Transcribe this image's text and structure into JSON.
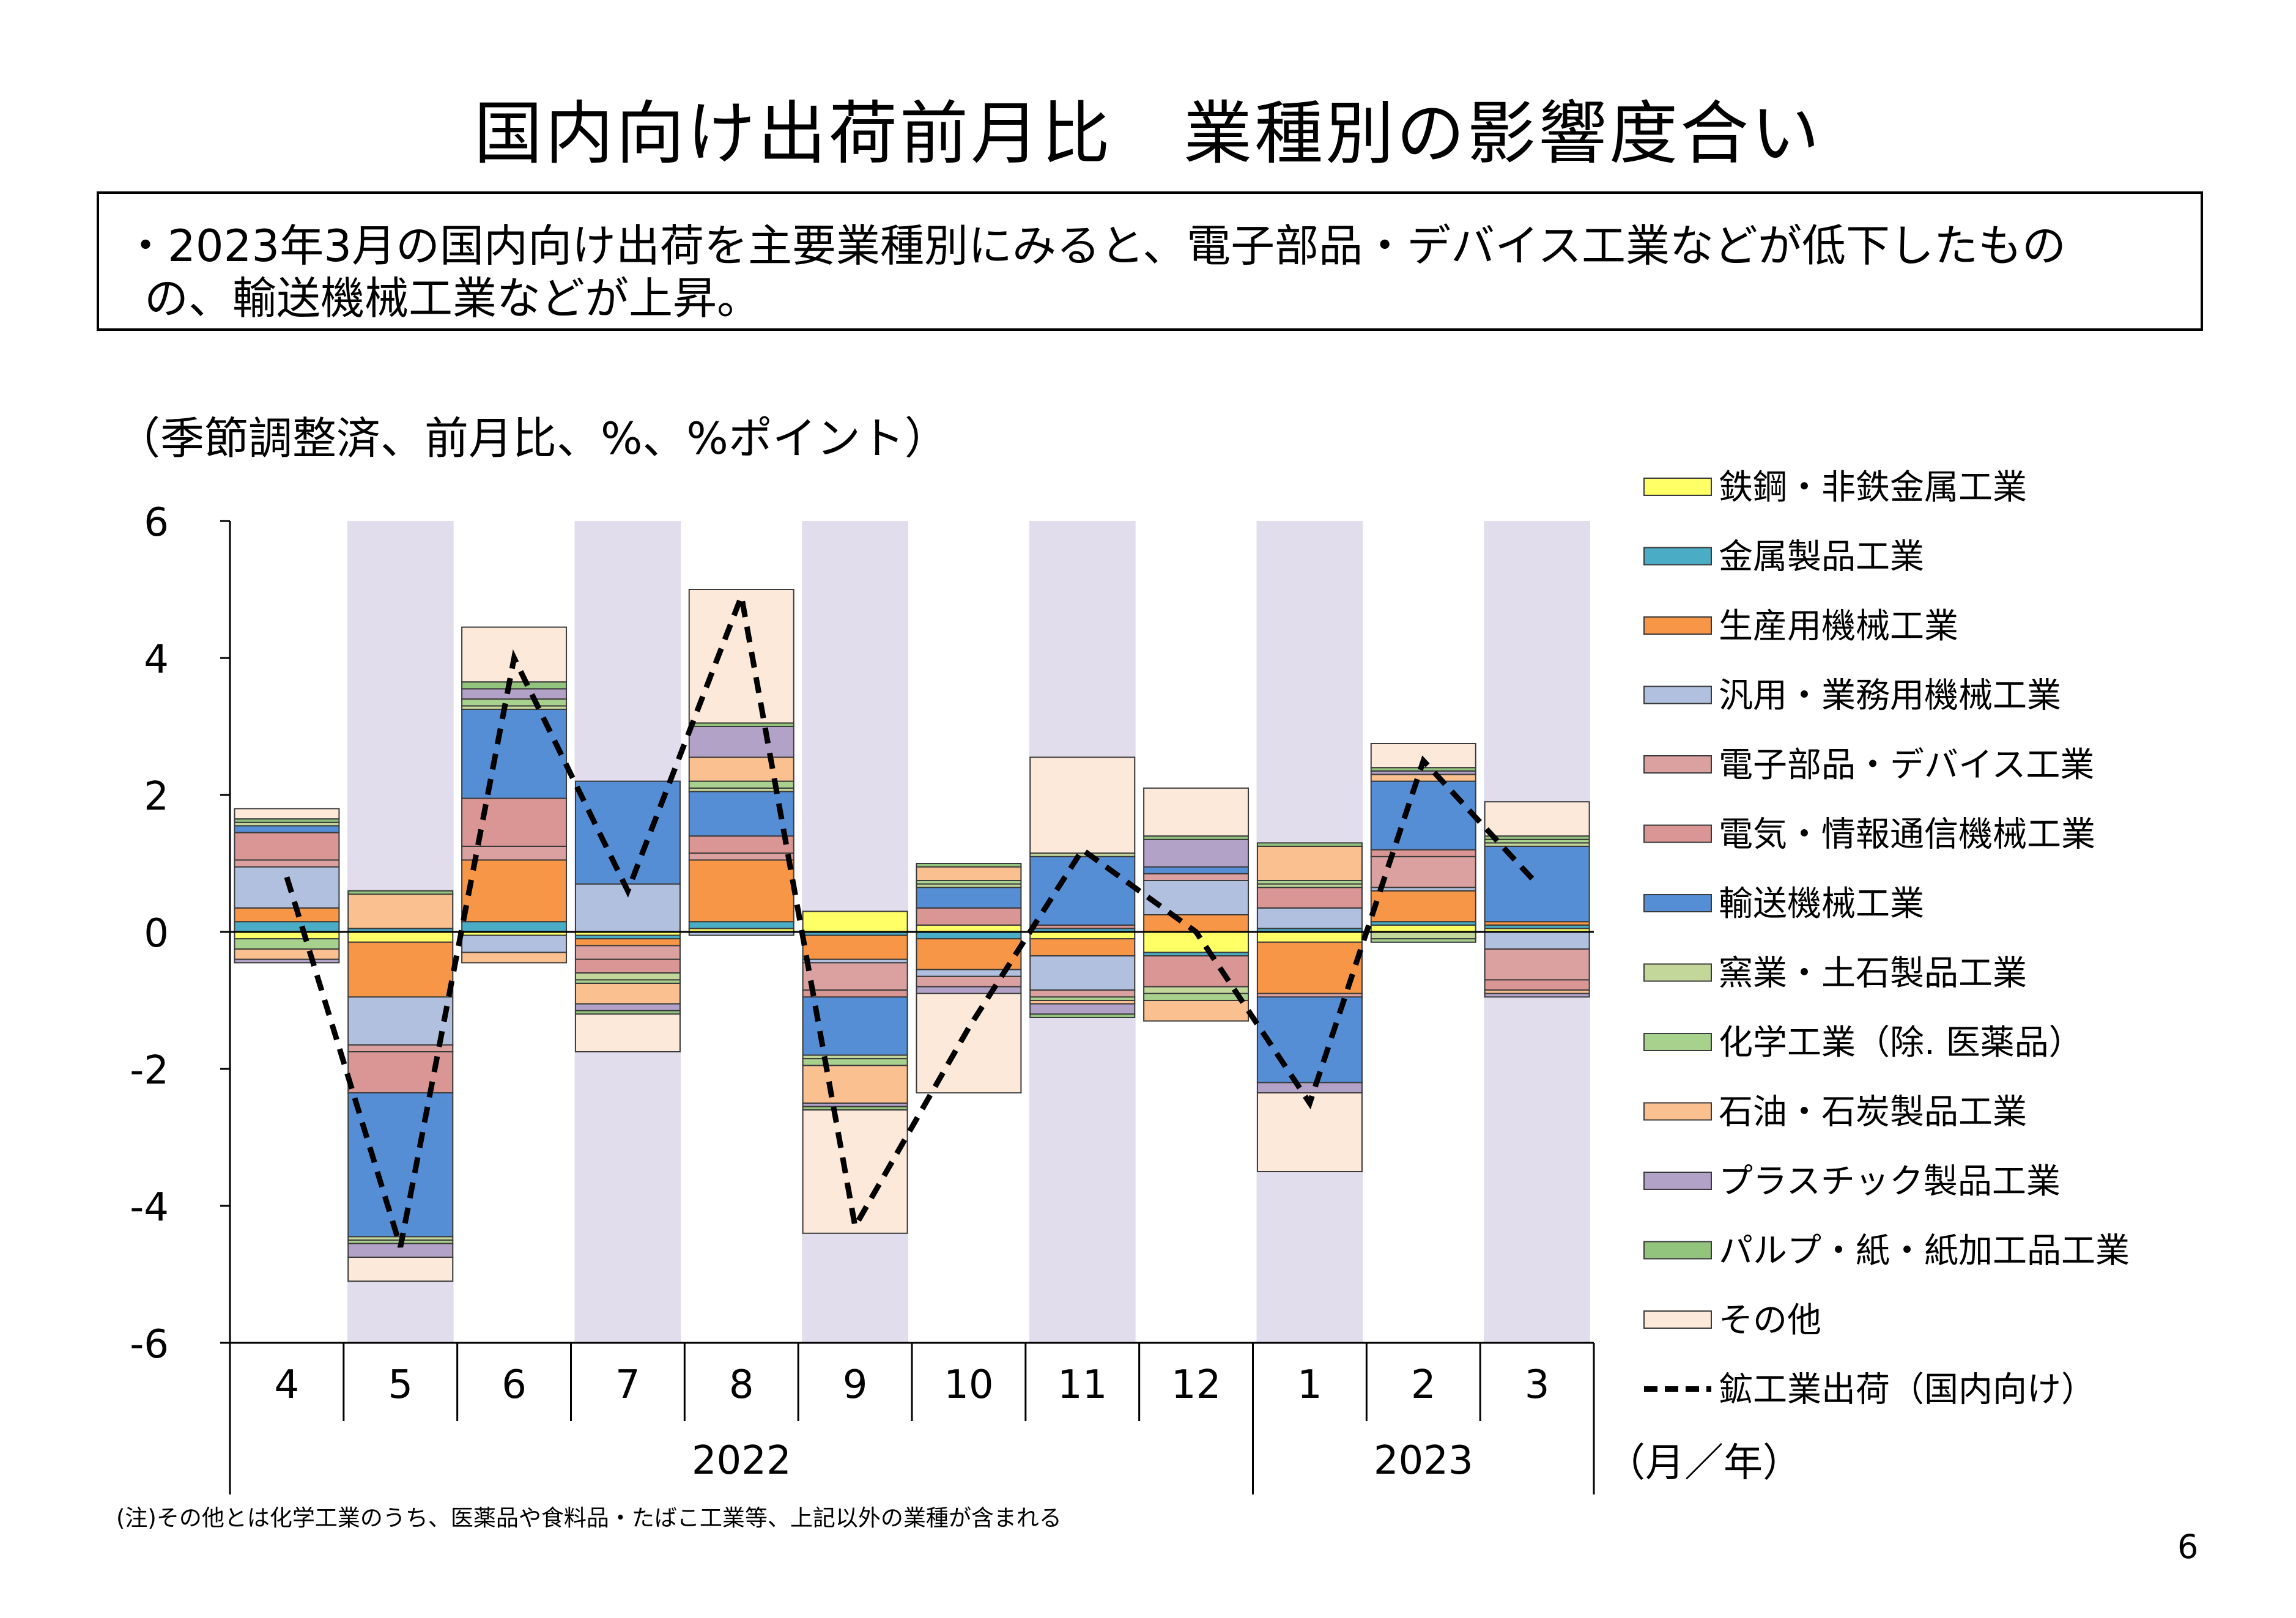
{
  "page": {
    "title": "国内向け出荷前月比　業種別の影響度合い",
    "summary_line1": "・2023年3月の国内向け出荷を主要業種別にみると、電子部品・デバイス工業などが低下したもの",
    "summary_line2": "の、輸送機械工業などが上昇。",
    "unit_label": "（季節調整済、前月比、%、%ポイント）",
    "footnote": "(注)その他とは化学工業のうち、医薬品や食料品・たばこ工業等、上記以外の業種が含まれる",
    "page_number": "6"
  },
  "chart_data": {
    "type": "bar",
    "stacked": true,
    "title": "",
    "xlabel": "（月／年）",
    "ylabel": "",
    "ylim": [
      -6,
      6
    ],
    "yticks": [
      6,
      4,
      2,
      0,
      -2,
      -4,
      -6
    ],
    "yticks_labels": [
      "6",
      "4",
      "2",
      "0",
      "-2",
      "-4",
      "-6"
    ],
    "categories": [
      "4",
      "5",
      "6",
      "7",
      "8",
      "9",
      "10",
      "11",
      "12",
      "1",
      "2",
      "3"
    ],
    "year_groups": [
      {
        "label": "2022",
        "start": 0,
        "end": 8
      },
      {
        "label": "2023",
        "start": 9,
        "end": 11
      }
    ],
    "shaded_categories": [
      1,
      3,
      5,
      7,
      9,
      11
    ],
    "shade_color": "#e2dded",
    "legend_position": "right",
    "series": [
      {
        "name": "鉄鋼・非鉄金属工業",
        "color": "#ffff66",
        "values": [
          -0.1,
          -0.15,
          -0.05,
          -0.05,
          0.05,
          0.3,
          0.1,
          -0.1,
          -0.3,
          -0.15,
          0.1,
          0.05
        ]
      },
      {
        "name": "金属製品工業",
        "color": "#4bacc6",
        "values": [
          0.15,
          0.05,
          0.15,
          -0.05,
          0.1,
          -0.05,
          -0.1,
          0.05,
          -0.05,
          0.05,
          0.05,
          0.05
        ]
      },
      {
        "name": "生産用機械工業",
        "color": "#f79646",
        "values": [
          0.2,
          -0.8,
          0.9,
          -0.1,
          0.9,
          -0.35,
          -0.45,
          -0.25,
          0.25,
          -0.75,
          0.45,
          0.05
        ]
      },
      {
        "name": "汎用・業務用機械工業",
        "color": "#b0c0de",
        "values": [
          0.6,
          -0.7,
          -0.25,
          0.7,
          -0.05,
          -0.05,
          -0.1,
          -0.5,
          0.5,
          0.3,
          0.05,
          -0.25
        ]
      },
      {
        "name": "電子部品・デバイス工業",
        "color": "#dba0a0",
        "values": [
          0.1,
          -0.1,
          0.2,
          -0.2,
          0.1,
          -0.4,
          -0.15,
          -0.1,
          0.1,
          -0.05,
          0.45,
          -0.45
        ]
      },
      {
        "name": "電気・情報通信機械工業",
        "color": "#d99694",
        "values": [
          0.4,
          -0.6,
          0.7,
          -0.2,
          0.25,
          -0.1,
          0.25,
          0.05,
          -0.45,
          0.3,
          0.1,
          -0.15
        ]
      },
      {
        "name": "輸送機械工業",
        "color": "#558ed5",
        "values": [
          0.1,
          -2.1,
          1.3,
          1.5,
          0.65,
          -0.85,
          0.3,
          1.0,
          0.1,
          -1.25,
          1.0,
          1.1
        ]
      },
      {
        "name": "窯業・土石製品工業",
        "color": "#c4d79b",
        "values": [
          0.05,
          -0.05,
          0.05,
          -0.1,
          0.05,
          -0.05,
          0.05,
          0.05,
          -0.1,
          0.05,
          -0.1,
          0.05
        ]
      },
      {
        "name": "化学工業（除. 医薬品）",
        "color": "#a9d18e",
        "values": [
          -0.15,
          -0.05,
          0.1,
          -0.05,
          0.1,
          -0.1,
          0.05,
          -0.05,
          -0.1,
          0.05,
          -0.05,
          0.05
        ]
      },
      {
        "name": "石油・石炭製品工業",
        "color": "#fac090",
        "values": [
          -0.15,
          0.5,
          -0.15,
          -0.3,
          0.35,
          -0.55,
          0.2,
          -0.05,
          -0.3,
          0.5,
          0.1,
          -0.05
        ]
      },
      {
        "name": "プラスチック製品工業",
        "color": "#b3a2c7",
        "values": [
          -0.05,
          -0.2,
          0.15,
          -0.1,
          0.45,
          -0.05,
          -0.1,
          -0.15,
          0.4,
          -0.15,
          0.05,
          -0.05
        ]
      },
      {
        "name": "パルプ・紙・紙加工品工業",
        "color": "#92c47d",
        "values": [
          0.05,
          0.05,
          0.1,
          -0.05,
          0.05,
          -0.05,
          0.05,
          -0.05,
          0.05,
          0.05,
          0.05,
          0.05
        ]
      },
      {
        "name": "その他",
        "color": "#fde9d9",
        "values": [
          0.15,
          -0.35,
          0.8,
          -0.55,
          1.95,
          -1.8,
          -1.45,
          1.4,
          0.7,
          -1.15,
          0.35,
          0.5
        ]
      }
    ],
    "line": {
      "name": "鉱工業出荷（国内向け）",
      "values": [
        0.8,
        -4.6,
        4.0,
        0.6,
        4.9,
        -4.3,
        -1.4,
        1.2,
        0.0,
        -2.5,
        2.5,
        0.7
      ]
    }
  }
}
